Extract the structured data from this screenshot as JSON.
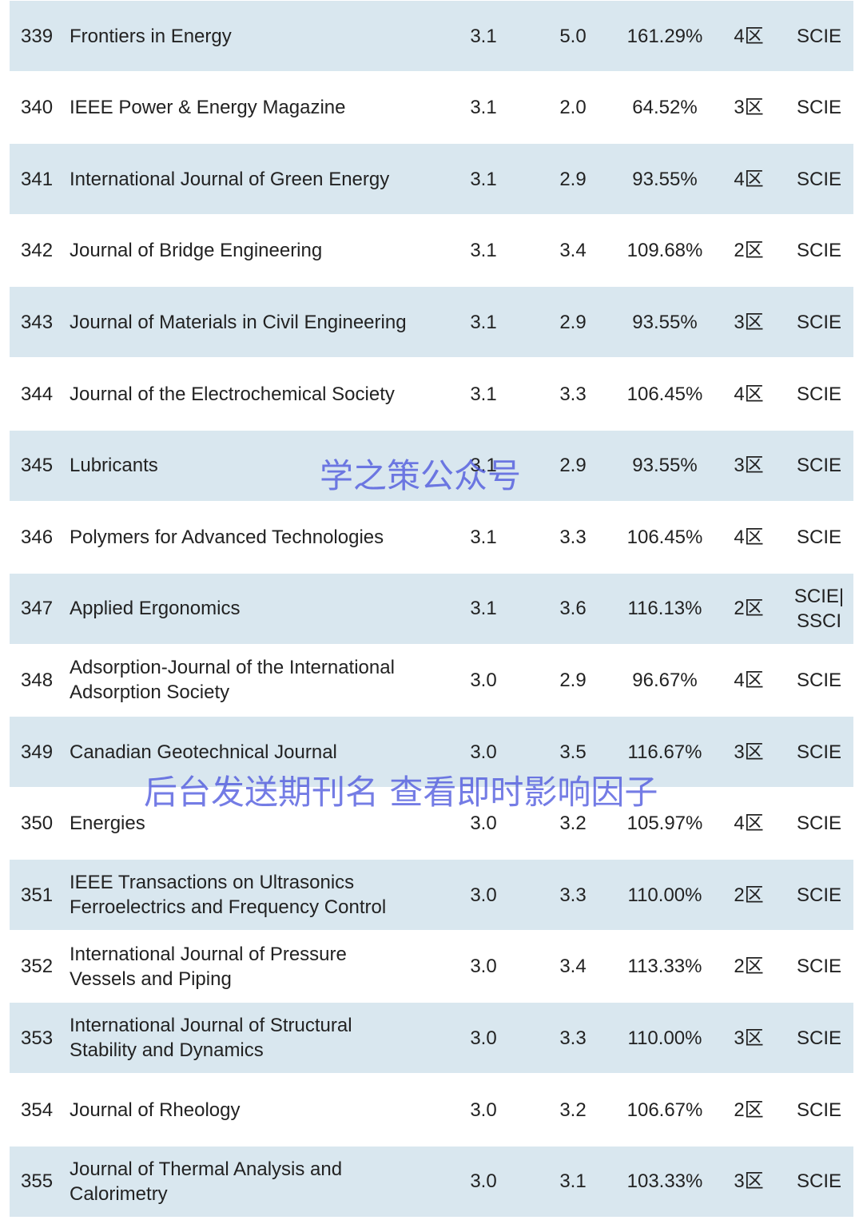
{
  "table": {
    "rows": [
      [
        "339",
        "Frontiers in Energy",
        "3.1",
        "5.0",
        "161.29%",
        "4区",
        "SCIE"
      ],
      [
        "340",
        "IEEE Power & Energy Magazine",
        "3.1",
        "2.0",
        "64.52%",
        "3区",
        "SCIE"
      ],
      [
        "341",
        "International Journal of Green Energy",
        "3.1",
        "2.9",
        "93.55%",
        "4区",
        "SCIE"
      ],
      [
        "342",
        "Journal of Bridge Engineering",
        "3.1",
        "3.4",
        "109.68%",
        "2区",
        "SCIE"
      ],
      [
        "343",
        "Journal of Materials in Civil Engineering",
        "3.1",
        "2.9",
        "93.55%",
        "3区",
        "SCIE"
      ],
      [
        "344",
        "Journal of the Electrochemical Society",
        "3.1",
        "3.3",
        "106.45%",
        "4区",
        "SCIE"
      ],
      [
        "345",
        "Lubricants",
        "3.1",
        "2.9",
        "93.55%",
        "3区",
        "SCIE"
      ],
      [
        "346",
        "Polymers for Advanced Technologies",
        "3.1",
        "3.3",
        "106.45%",
        "4区",
        "SCIE"
      ],
      [
        "347",
        "Applied Ergonomics",
        "3.1",
        "3.6",
        "116.13%",
        "2区",
        "SCIE|\nSSCI"
      ],
      [
        "348",
        "Adsorption-Journal of the International\nAdsorption Society",
        "3.0",
        "2.9",
        "96.67%",
        "4区",
        "SCIE"
      ],
      [
        "349",
        "Canadian Geotechnical Journal",
        "3.0",
        "3.5",
        "116.67%",
        "3区",
        "SCIE"
      ],
      [
        "350",
        "Energies",
        "3.0",
        "3.2",
        "105.97%",
        "4区",
        "SCIE"
      ],
      [
        "351",
        "IEEE Transactions on Ultrasonics\nFerroelectrics and Frequency Control",
        "3.0",
        "3.3",
        "110.00%",
        "2区",
        "SCIE"
      ],
      [
        "352",
        "International Journal of Pressure\nVessels and Piping",
        "3.0",
        "3.4",
        "113.33%",
        "2区",
        "SCIE"
      ],
      [
        "353",
        "International Journal of Structural\nStability and Dynamics",
        "3.0",
        "3.3",
        "110.00%",
        "3区",
        "SCIE"
      ],
      [
        "354",
        "Journal of Rheology",
        "3.0",
        "3.2",
        "106.67%",
        "2区",
        "SCIE"
      ],
      [
        "355",
        "Journal of Thermal Analysis and\nCalorimetry",
        "3.0",
        "3.1",
        "103.33%",
        "3区",
        "SCIE"
      ]
    ]
  },
  "watermarks": [
    "学之策公众号",
    "后台发送期刊名 查看即时影响因子"
  ]
}
